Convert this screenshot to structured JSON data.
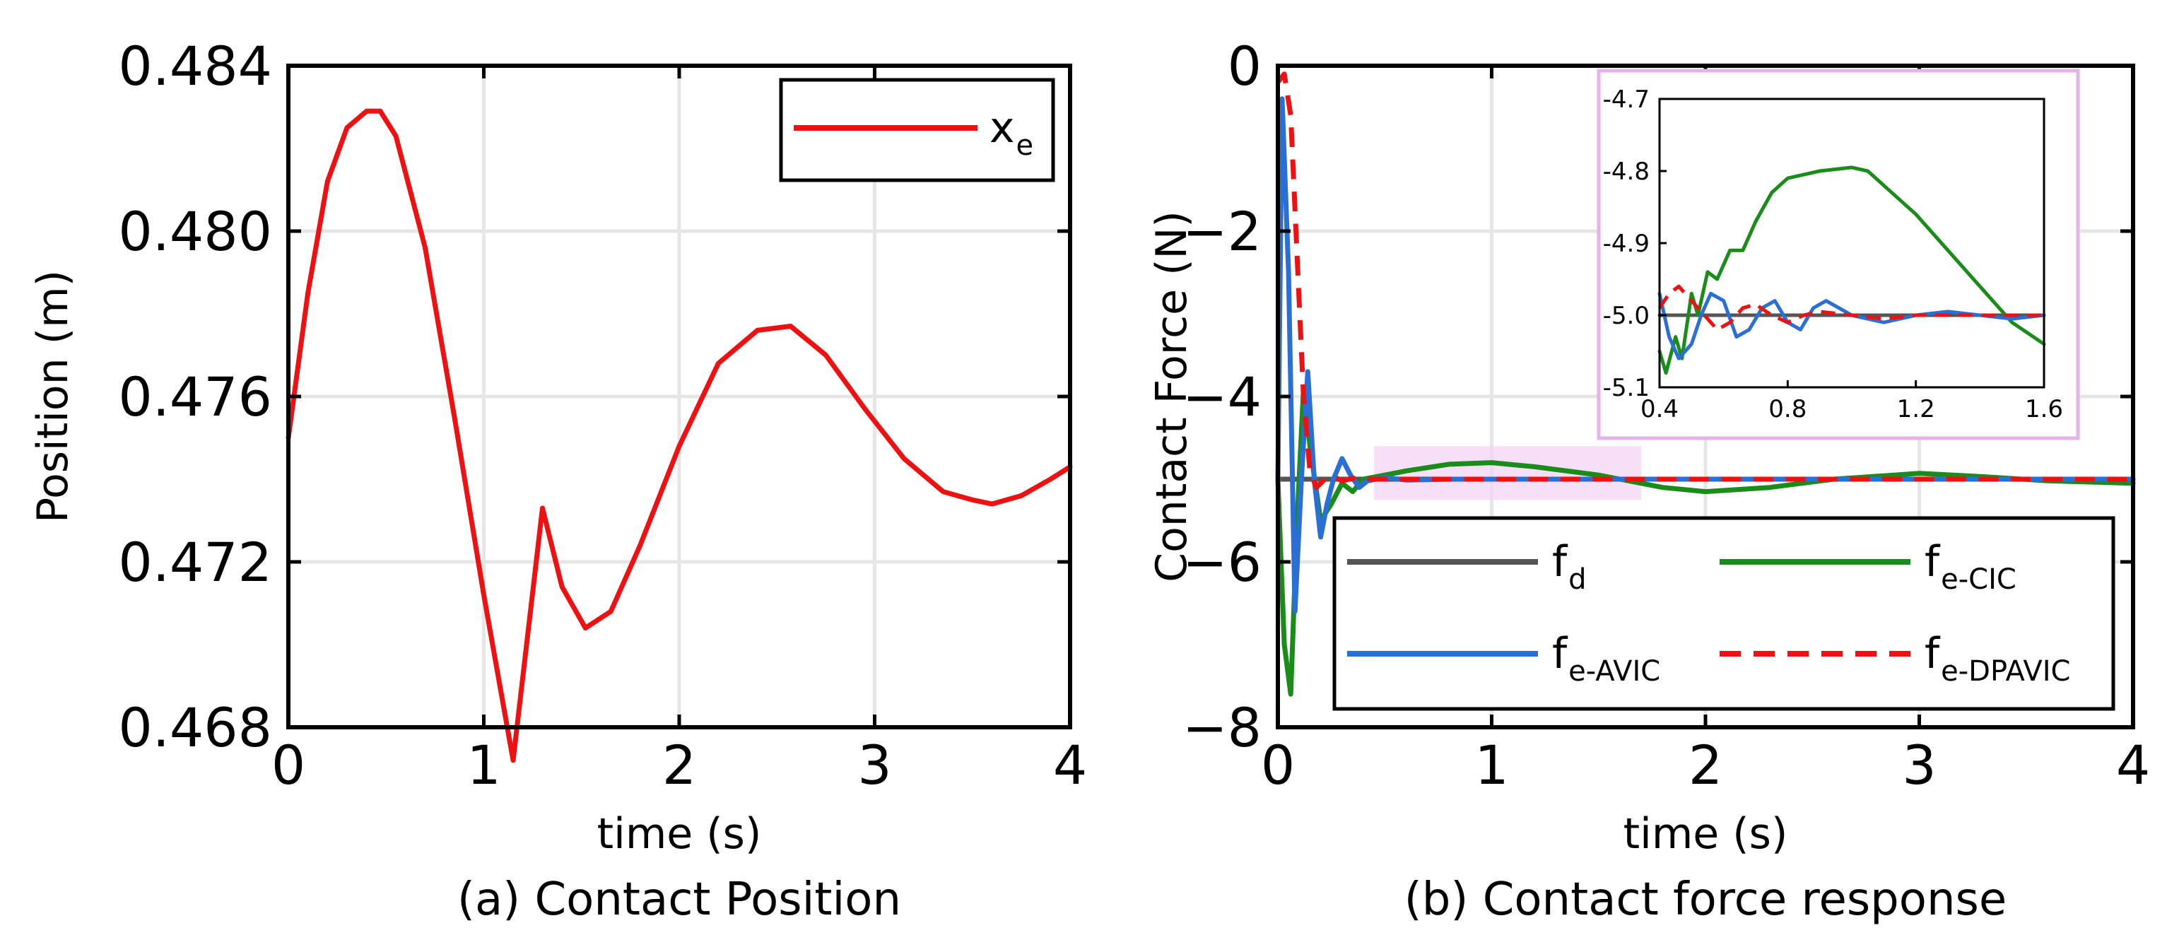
{
  "chart_data": [
    {
      "type": "line",
      "id": "a",
      "caption": "(a) Contact Position",
      "xlabel": "time (s)",
      "ylabel": "Position (m)",
      "xlim": [
        0,
        4
      ],
      "ylim": [
        0.468,
        0.484
      ],
      "grid": true,
      "xticks": [
        "0",
        "1",
        "2",
        "3",
        "4"
      ],
      "yticks": [
        "0.468",
        "0.472",
        "0.476",
        "0.480",
        "0.484"
      ],
      "legend": {
        "placement": "top-right",
        "entries": [
          {
            "base": "x",
            "sub": "e",
            "color": "#ee1111",
            "dash": "solid"
          }
        ]
      },
      "series": [
        {
          "name": "x_e",
          "color": "#ee1111",
          "dash": "solid",
          "x": [
            0,
            0.1,
            0.2,
            0.3,
            0.4,
            0.47,
            0.55,
            0.7,
            0.85,
            1.0,
            1.15,
            1.3,
            1.4,
            1.52,
            1.65,
            1.8,
            2.0,
            2.2,
            2.4,
            2.57,
            2.75,
            2.95,
            3.15,
            3.35,
            3.5,
            3.6,
            3.75,
            3.9,
            4.0
          ],
          "values": [
            0.475,
            0.4785,
            0.4812,
            0.4825,
            0.4829,
            0.4829,
            0.4823,
            0.4796,
            0.4755,
            0.4712,
            0.4672,
            0.4733,
            0.4714,
            0.4704,
            0.4708,
            0.4724,
            0.4748,
            0.4768,
            0.4776,
            0.4777,
            0.477,
            0.4757,
            0.4745,
            0.4737,
            0.4735,
            0.4734,
            0.4736,
            0.474,
            0.4743
          ]
        }
      ]
    },
    {
      "type": "line",
      "id": "b",
      "caption": "(b) Contact force response",
      "xlabel": "time (s)",
      "ylabel": "Contact Force (N)",
      "xlim": [
        0,
        4
      ],
      "ylim": [
        -8,
        0
      ],
      "grid": true,
      "xticks": [
        "0",
        "1",
        "2",
        "3",
        "4"
      ],
      "yticks": [
        "−8",
        "−6",
        "−4",
        "−2",
        "0"
      ],
      "legend": {
        "placement": "lower-center",
        "entries": [
          {
            "base": "f",
            "sub": "d",
            "color": "#555555",
            "dash": "solid"
          },
          {
            "base": "f",
            "sub": "e-CIC",
            "color": "#1a8c1a",
            "dash": "solid"
          },
          {
            "base": "f",
            "sub": "e-AVIC",
            "color": "#2a6fd6",
            "dash": "solid"
          },
          {
            "base": "f",
            "sub": "e-DPAVIC",
            "color": "#ee1111",
            "dash": "dashed"
          }
        ]
      },
      "series": [
        {
          "name": "f_d",
          "color": "#555555",
          "dash": "solid",
          "x": [
            0,
            4
          ],
          "values": [
            -5.0,
            -5.0
          ]
        },
        {
          "name": "f_e-CIC",
          "color": "#1a8c1a",
          "dash": "solid",
          "x": [
            0,
            0.03,
            0.06,
            0.09,
            0.12,
            0.15,
            0.2,
            0.25,
            0.3,
            0.35,
            0.4,
            0.5,
            0.6,
            0.8,
            1.0,
            1.2,
            1.5,
            1.8,
            2.0,
            2.3,
            2.6,
            3.0,
            3.3,
            3.6,
            4.0
          ],
          "values": [
            -5.0,
            -7.0,
            -7.6,
            -5.5,
            -3.9,
            -4.6,
            -5.5,
            -5.3,
            -5.05,
            -5.15,
            -5.0,
            -4.95,
            -4.9,
            -4.82,
            -4.8,
            -4.85,
            -4.95,
            -5.1,
            -5.15,
            -5.1,
            -5.0,
            -4.93,
            -4.97,
            -5.02,
            -5.05
          ]
        },
        {
          "name": "f_e-AVIC",
          "color": "#2a6fd6",
          "dash": "solid",
          "x": [
            0,
            0.02,
            0.05,
            0.08,
            0.11,
            0.14,
            0.17,
            0.2,
            0.23,
            0.26,
            0.3,
            0.34,
            0.38,
            0.42,
            0.5,
            0.6,
            0.8,
            1.0,
            2.0,
            3.0,
            4.0
          ],
          "values": [
            -5.0,
            -0.4,
            -2.5,
            -6.6,
            -5.0,
            -3.7,
            -5.0,
            -5.7,
            -5.3,
            -5.0,
            -4.75,
            -4.95,
            -5.1,
            -5.02,
            -4.98,
            -5.01,
            -5.0,
            -5.0,
            -5.0,
            -5.0,
            -5.0
          ]
        },
        {
          "name": "f_e-DPAVIC",
          "color": "#ee1111",
          "dash": "dashed",
          "x": [
            0,
            0.03,
            0.06,
            0.09,
            0.12,
            0.15,
            0.18,
            0.22,
            0.26,
            0.3,
            0.35,
            0.4,
            0.5,
            0.6,
            0.8,
            1.0,
            2.0,
            3.0,
            4.0
          ],
          "values": [
            -0.2,
            -0.1,
            -0.6,
            -2.3,
            -4.0,
            -4.9,
            -5.1,
            -5.0,
            -4.97,
            -5.02,
            -4.99,
            -5.0,
            -5.0,
            -5.0,
            -5.0,
            -5.0,
            -5.0,
            -5.0,
            -5.0
          ]
        }
      ],
      "inset": {
        "xlim": [
          0.4,
          1.6
        ],
        "ylim": [
          -5.1,
          -4.7
        ],
        "xticks": [
          "0.4",
          "0.8",
          "1.2",
          "1.6"
        ],
        "yticks": [
          "-5.1",
          "-5.0",
          "-4.9",
          "-4.8",
          "-4.7"
        ],
        "zoom_region_x": [
          0.45,
          1.7
        ],
        "zoom_region_y": [
          -5.25,
          -4.6
        ],
        "series": [
          {
            "name": "f_d",
            "color": "#555555",
            "dash": "solid",
            "x": [
              0.4,
              1.6
            ],
            "values": [
              -5.0,
              -5.0
            ]
          },
          {
            "name": "f_e-CIC",
            "color": "#1a8c1a",
            "dash": "solid",
            "x": [
              0.4,
              0.42,
              0.45,
              0.47,
              0.5,
              0.52,
              0.55,
              0.58,
              0.62,
              0.66,
              0.7,
              0.75,
              0.8,
              0.85,
              0.9,
              1.0,
              1.05,
              1.1,
              1.2,
              1.3,
              1.4,
              1.5,
              1.6
            ],
            "values": [
              -5.05,
              -5.08,
              -5.03,
              -5.06,
              -4.97,
              -5.0,
              -4.94,
              -4.95,
              -4.91,
              -4.91,
              -4.87,
              -4.83,
              -4.81,
              -4.805,
              -4.8,
              -4.795,
              -4.8,
              -4.82,
              -4.86,
              -4.91,
              -4.96,
              -5.01,
              -5.04
            ]
          },
          {
            "name": "f_e-AVIC",
            "color": "#2a6fd6",
            "dash": "solid",
            "x": [
              0.4,
              0.43,
              0.46,
              0.5,
              0.53,
              0.56,
              0.6,
              0.64,
              0.68,
              0.72,
              0.76,
              0.8,
              0.84,
              0.88,
              0.92,
              0.96,
              1.0,
              1.1,
              1.2,
              1.3,
              1.4,
              1.5,
              1.6
            ],
            "values": [
              -4.97,
              -5.03,
              -5.06,
              -5.04,
              -5.0,
              -4.97,
              -4.98,
              -5.03,
              -5.02,
              -4.99,
              -4.98,
              -5.01,
              -5.02,
              -4.99,
              -4.98,
              -4.99,
              -5.0,
              -5.01,
              -5.0,
              -4.995,
              -5.0,
              -5.005,
              -5.0
            ]
          },
          {
            "name": "f_e-DPAVIC",
            "color": "#ee1111",
            "dash": "dashed",
            "x": [
              0.4,
              0.43,
              0.46,
              0.5,
              0.54,
              0.58,
              0.62,
              0.66,
              0.7,
              0.75,
              0.8,
              0.85,
              0.9,
              1.0,
              1.1,
              1.2,
              1.3,
              1.4,
              1.5,
              1.6
            ],
            "values": [
              -4.99,
              -4.97,
              -4.96,
              -4.98,
              -5.0,
              -5.02,
              -5.01,
              -4.99,
              -4.985,
              -5.0,
              -5.01,
              -5.0,
              -4.995,
              -5.0,
              -5.005,
              -5.0,
              -5.0,
              -5.0,
              -5.0,
              -5.0
            ]
          }
        ]
      }
    }
  ]
}
